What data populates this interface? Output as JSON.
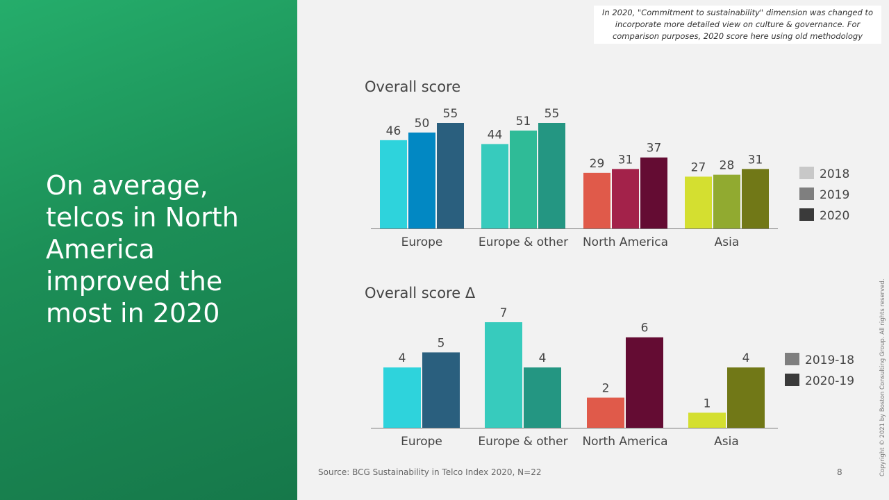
{
  "headline": "On average, telcos in North America improved the most in 2020",
  "note": "In 2020, \"Commitment to sustainability\" dimension was changed to incorporate more detailed view on culture & governance. For comparison purposes, 2020 score here using old methodology",
  "source": "Source: BCG Sustainability in Telco Index 2020, N=22",
  "page_number": "8",
  "copyright": "Copyright © 2021 by Boston Consulting Group. All rights reserved.",
  "chart_data": [
    {
      "type": "bar",
      "title": "Overall score",
      "categories": [
        "Europe",
        "Europe & other",
        "North America",
        "Asia"
      ],
      "series": [
        {
          "name": "2018",
          "values": [
            46,
            44,
            29,
            27
          ],
          "legend_color": "#c8c8c8"
        },
        {
          "name": "2019",
          "values": [
            50,
            51,
            31,
            28
          ],
          "legend_color": "#7f7f7f"
        },
        {
          "name": "2020",
          "values": [
            55,
            55,
            37,
            31
          ],
          "legend_color": "#3a3a3a"
        }
      ],
      "colors": [
        [
          "#2ed3dc",
          "#0288c3",
          "#2a5f7e"
        ],
        [
          "#37cbbd",
          "#2fbb97",
          "#249682"
        ],
        [
          "#e05a4a",
          "#a3224a",
          "#640c33"
        ],
        [
          "#d4df30",
          "#91aa30",
          "#717817"
        ]
      ],
      "ylim": [
        0,
        55
      ],
      "legend": "right"
    },
    {
      "type": "bar",
      "title": "Overall score Δ",
      "categories": [
        "Europe",
        "Europe & other",
        "North America",
        "Asia"
      ],
      "series": [
        {
          "name": "2019-18",
          "values": [
            4,
            7,
            2,
            1
          ],
          "legend_color": "#7f7f7f"
        },
        {
          "name": "2020-19",
          "values": [
            5,
            4,
            6,
            4
          ],
          "legend_color": "#3a3a3a"
        }
      ],
      "colors": [
        [
          "#2ed3dc",
          "#2a5f7e"
        ],
        [
          "#37cbbd",
          "#249682"
        ],
        [
          "#e05a4a",
          "#640c33"
        ],
        [
          "#d4df30",
          "#717817"
        ]
      ],
      "ylim": [
        0,
        7
      ],
      "legend": "right"
    }
  ]
}
